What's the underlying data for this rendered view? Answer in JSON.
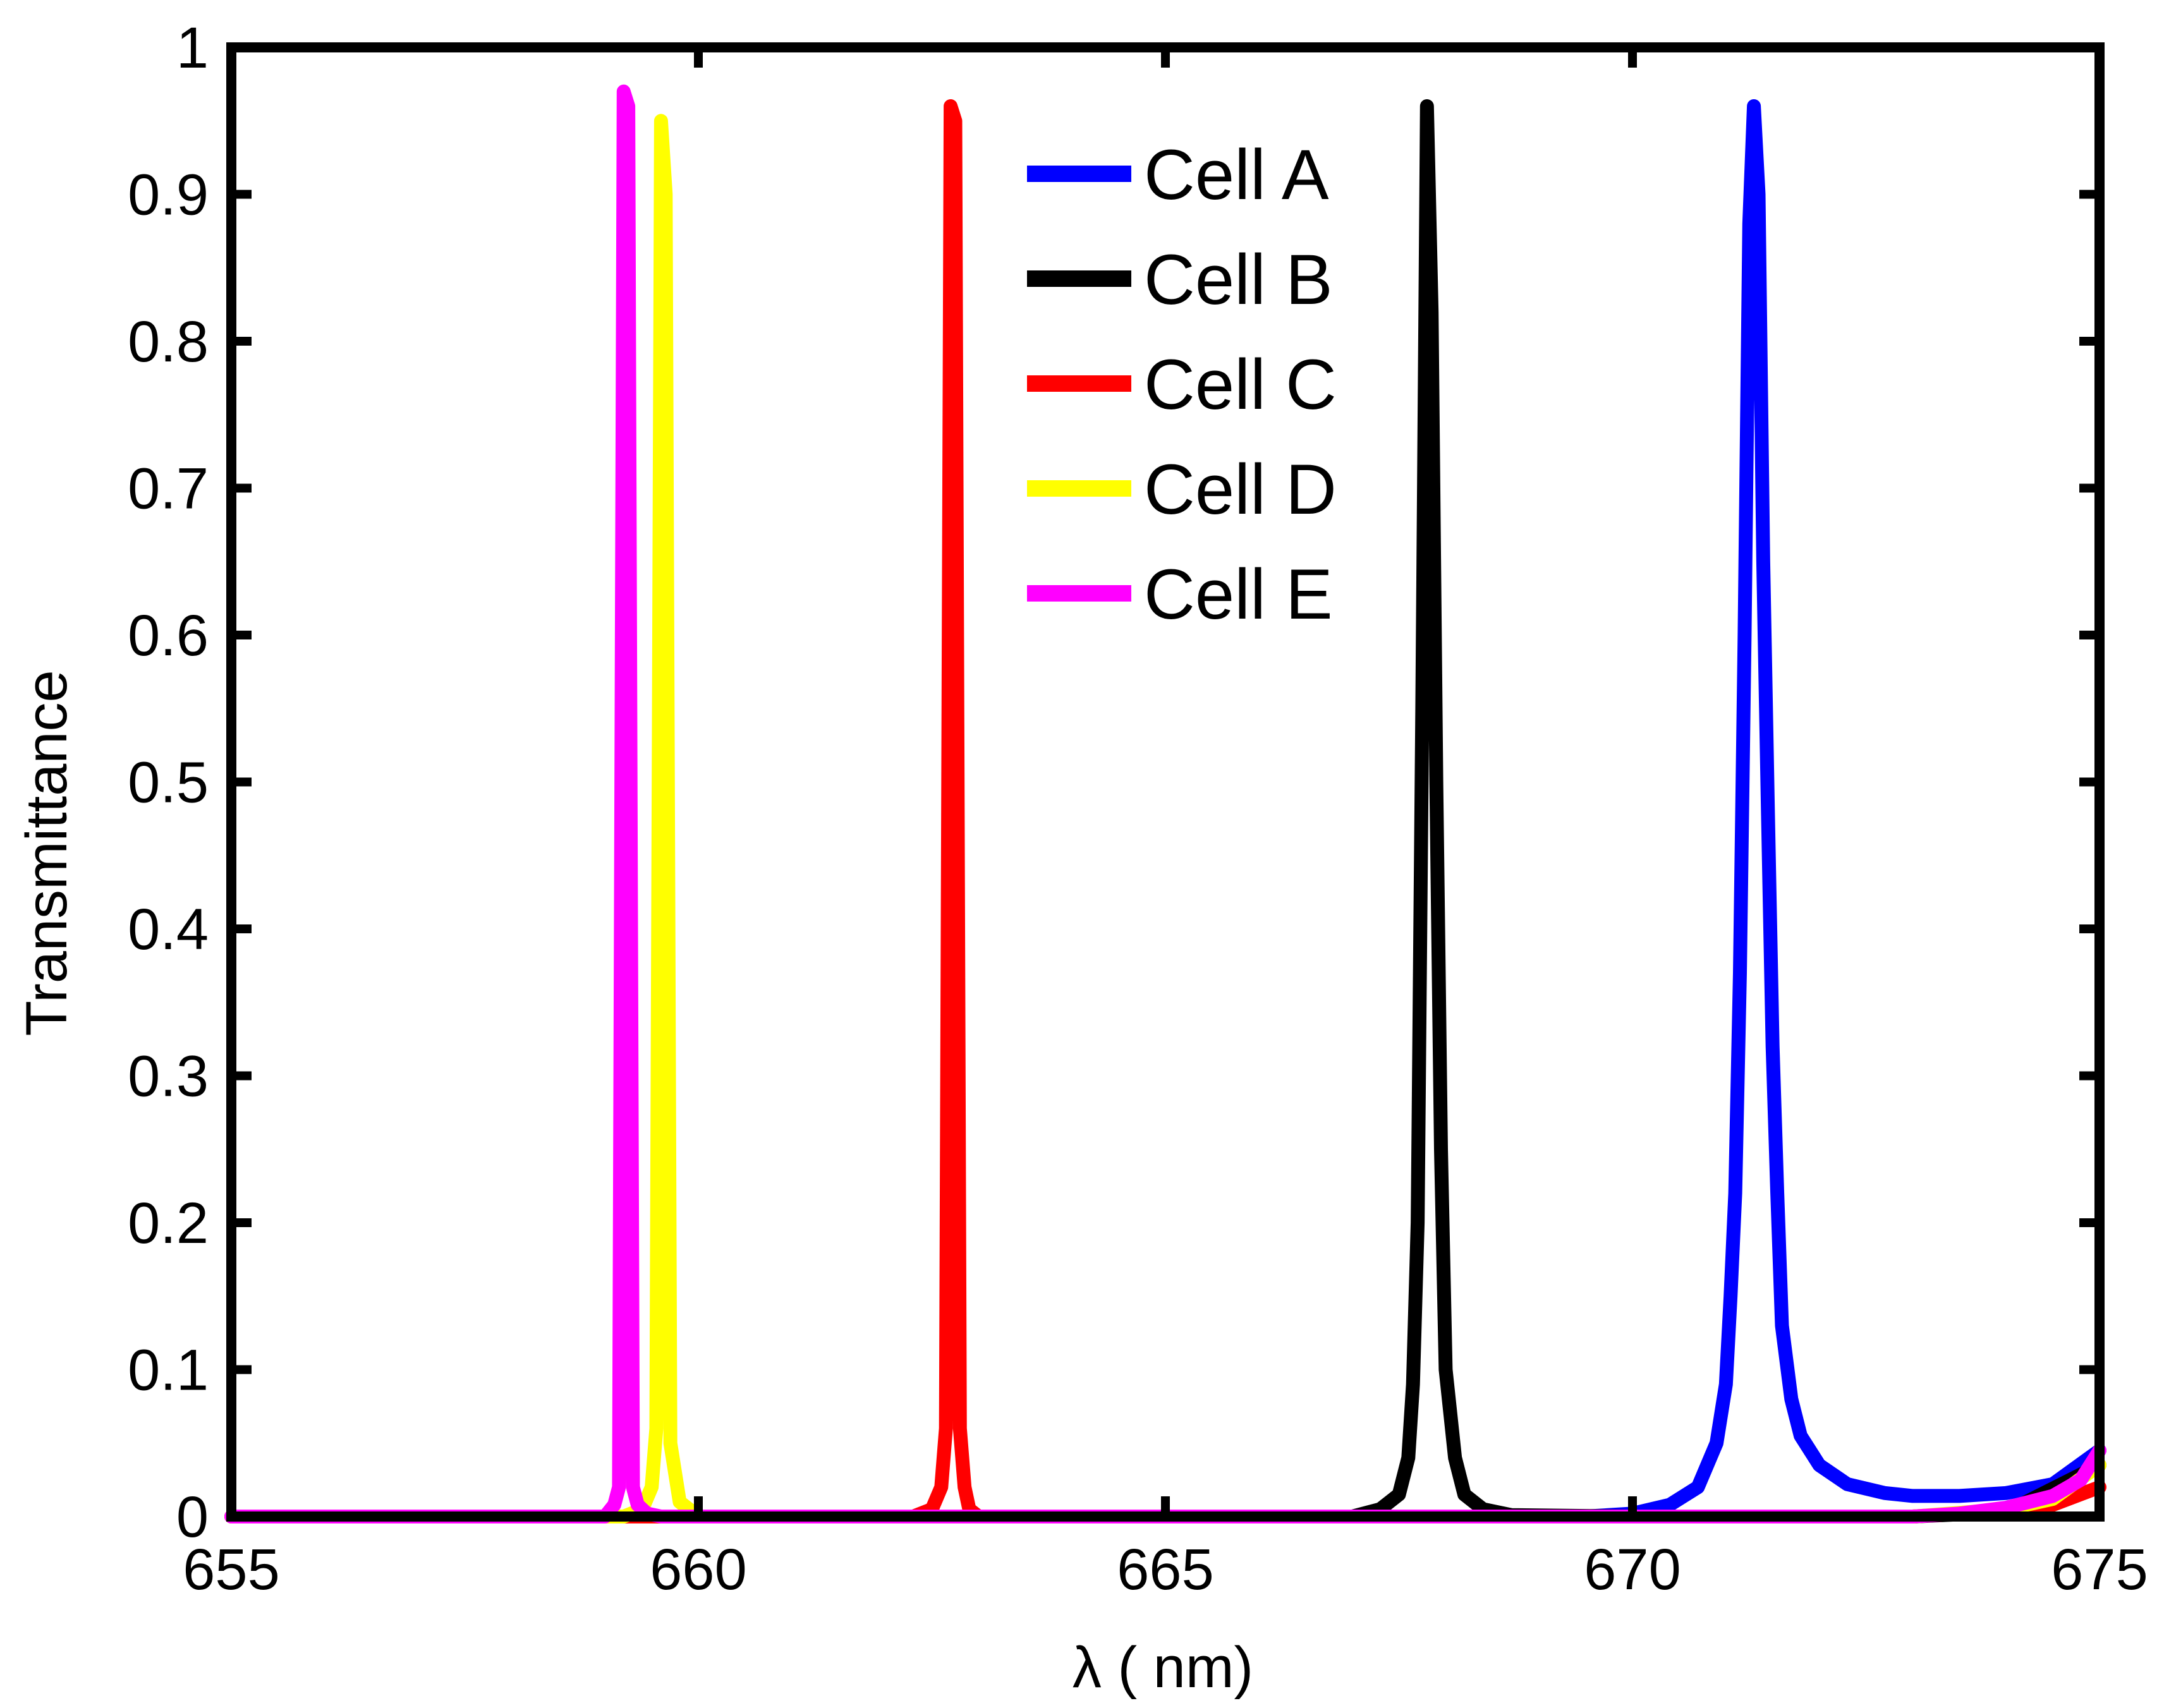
{
  "chart_data": {
    "type": "line",
    "title": "",
    "xlabel": "λ ( nm)",
    "ylabel": "Transmittance",
    "xlim": [
      655,
      675
    ],
    "ylim": [
      0,
      1
    ],
    "xticks": [
      655,
      660,
      665,
      670,
      675
    ],
    "yticks": [
      0,
      0.1,
      0.2,
      0.3,
      0.4,
      0.5,
      0.6,
      0.7,
      0.8,
      0.9,
      1
    ],
    "ytick_labels": [
      "0",
      "0.1",
      "0.2",
      "0.3",
      "0.4",
      "0.5",
      "0.6",
      "0.7",
      "0.8",
      "0.9",
      "1"
    ],
    "grid": false,
    "legend_position": "top-center",
    "series": [
      {
        "name": "Cell A",
        "color": "#0000ff",
        "x": [
          655,
          669.5,
          670.0,
          670.4,
          670.7,
          670.9,
          671.0,
          671.05,
          671.1,
          671.15,
          671.2,
          671.25,
          671.3,
          671.35,
          671.4,
          671.45,
          671.5,
          671.55,
          671.6,
          671.7,
          671.8,
          672.0,
          672.3,
          672.7,
          673.0,
          673.5,
          674.0,
          674.5,
          675
        ],
        "y": [
          0,
          0,
          0.002,
          0.008,
          0.02,
          0.05,
          0.09,
          0.15,
          0.22,
          0.37,
          0.6,
          0.88,
          0.96,
          0.9,
          0.65,
          0.48,
          0.32,
          0.22,
          0.13,
          0.08,
          0.055,
          0.035,
          0.022,
          0.016,
          0.014,
          0.014,
          0.016,
          0.022,
          0.045
        ]
      },
      {
        "name": "Cell B",
        "color": "#000000",
        "x": [
          655,
          667.0,
          667.3,
          667.5,
          667.6,
          667.65,
          667.7,
          667.75,
          667.8,
          667.85,
          667.9,
          667.95,
          668.0,
          668.1,
          668.2,
          668.4,
          668.7,
          670.0,
          673.0,
          674.0,
          675
        ],
        "y": [
          0,
          0,
          0.005,
          0.015,
          0.04,
          0.09,
          0.2,
          0.55,
          0.96,
          0.82,
          0.5,
          0.25,
          0.1,
          0.04,
          0.015,
          0.005,
          0.001,
          0,
          0,
          0.003,
          0.035
        ]
      },
      {
        "name": "Cell C",
        "color": "#ff0000",
        "x": [
          655,
          662.3,
          662.5,
          662.6,
          662.65,
          662.7,
          662.75,
          662.8,
          662.85,
          662.9,
          663.0,
          663.2,
          673.0,
          674.0,
          674.5,
          675
        ],
        "y": [
          0,
          0,
          0.005,
          0.02,
          0.06,
          0.96,
          0.95,
          0.06,
          0.02,
          0.005,
          0,
          0,
          0,
          0.004,
          0.008,
          0.02
        ]
      },
      {
        "name": "Cell D",
        "color": "#ffff00",
        "x": [
          655,
          659.2,
          659.4,
          659.5,
          659.55,
          659.6,
          659.65,
          659.7,
          659.8,
          660.0,
          673.0,
          674.0,
          674.5,
          675
        ],
        "y": [
          0,
          0,
          0.005,
          0.02,
          0.06,
          0.95,
          0.9,
          0.05,
          0.01,
          0,
          0,
          0.005,
          0.012,
          0.035
        ]
      },
      {
        "name": "Cell E",
        "color": "#ff00ff",
        "x": [
          655,
          659.0,
          659.1,
          659.15,
          659.2,
          659.25,
          659.3,
          659.35,
          659.45,
          659.6,
          673.0,
          673.5,
          674.0,
          674.5,
          674.8,
          675
        ],
        "y": [
          0,
          0,
          0.008,
          0.02,
          0.97,
          0.96,
          0.02,
          0.008,
          0.002,
          0,
          0,
          0.002,
          0.006,
          0.014,
          0.025,
          0.045
        ]
      }
    ]
  }
}
